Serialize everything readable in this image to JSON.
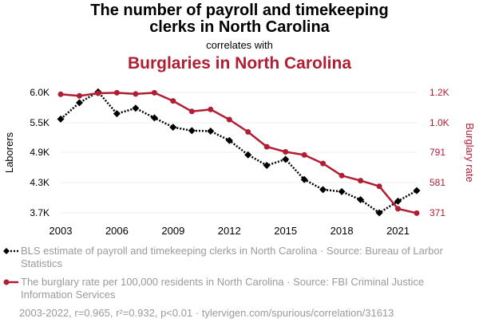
{
  "header": {
    "title_line1": "The number of payroll and timekeeping",
    "title_line2": "clerks in North Carolina",
    "connector": "correlates with",
    "subtitle": "Burglaries in North Carolina"
  },
  "legend": {
    "series1": "BLS estimate of payroll and timekeeping clerks in North Carolina · Source: Bureau of Larbor Statistics",
    "series2": "The burglary rate per 100,000 residents in North Carolina · Source: FBI Criminal Justice Information Services"
  },
  "footer": "2003-2022, r=0.965, r²=0.932, p<0.01 · tylervigen.com/spurious/correlation/31613",
  "colors": {
    "series1": "#000000",
    "series2": "#b01e34",
    "grid": "#eeeeee",
    "muted": "#9a9a9a"
  },
  "chart_data": {
    "type": "line",
    "x": [
      2003,
      2004,
      2005,
      2006,
      2007,
      2008,
      2009,
      2010,
      2011,
      2012,
      2013,
      2014,
      2015,
      2016,
      2017,
      2018,
      2019,
      2020,
      2021,
      2022
    ],
    "xticks": [
      "2003",
      "2006",
      "2009",
      "2012",
      "2015",
      "2018",
      "2021"
    ],
    "xlim": [
      2003,
      2022
    ],
    "grid": true,
    "y_left": {
      "label": "Laborers",
      "ticks": [
        3700,
        4300,
        4900,
        5500,
        6000
      ],
      "tick_labels": [
        "3.7K",
        "4.3K",
        "4.9K",
        "5.5K",
        "6.0K"
      ]
    },
    "y_right": {
      "label": "Burglary rate",
      "ticks": [
        371,
        581,
        791,
        1000,
        1200
      ],
      "tick_labels": [
        "371",
        "581",
        "791",
        "1.0K",
        "1.2K"
      ]
    },
    "series": [
      {
        "axis": "left",
        "style": "dotted",
        "marker": "diamond",
        "values": [
          5560,
          5830,
          6010,
          5650,
          5740,
          5580,
          5410,
          5340,
          5330,
          5140,
          4850,
          4640,
          4760,
          4360,
          4160,
          4120,
          3960,
          3700,
          3930,
          4140
        ]
      },
      {
        "axis": "right",
        "style": "solid",
        "marker": "circle",
        "values": [
          1188,
          1178,
          1195,
          1198,
          1190,
          1198,
          1144,
          1075,
          1088,
          1021,
          935,
          830,
          794,
          772,
          713,
          629,
          594,
          555,
          399,
          369
        ]
      }
    ]
  }
}
